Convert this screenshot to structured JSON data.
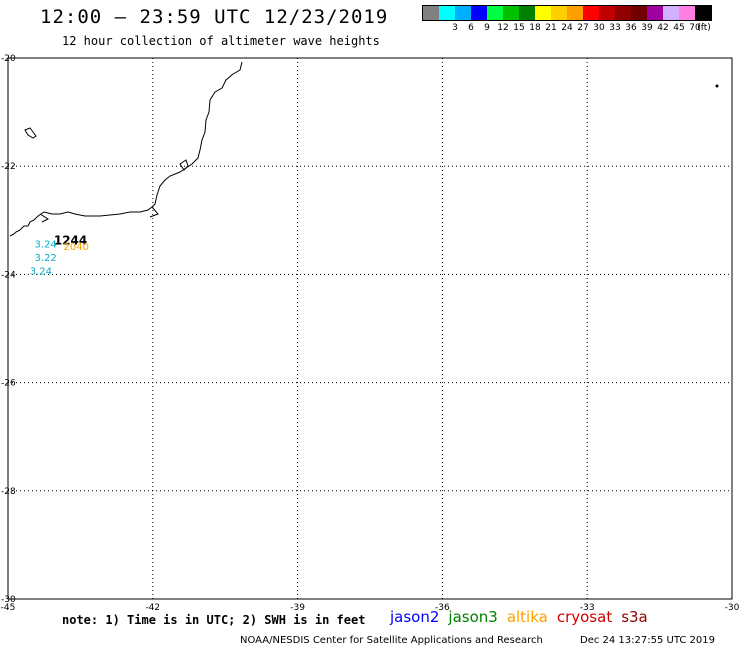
{
  "header": {
    "title": "12:00 – 23:59 UTC 12/23/2019",
    "subtitle": "12 hour collection of altimeter wave heights"
  },
  "legend": {
    "unit": "(ft)",
    "bins": [
      {
        "label": "",
        "color": "#808080"
      },
      {
        "label": "3",
        "color": "#00ffff"
      },
      {
        "label": "6",
        "color": "#00b0ff"
      },
      {
        "label": "9",
        "color": "#0000ff"
      },
      {
        "label": "12",
        "color": "#00ff40"
      },
      {
        "label": "15",
        "color": "#00c000"
      },
      {
        "label": "18",
        "color": "#008000"
      },
      {
        "label": "21",
        "color": "#ffff00"
      },
      {
        "label": "24",
        "color": "#ffd000"
      },
      {
        "label": "27",
        "color": "#ffa000"
      },
      {
        "label": "30",
        "color": "#ff0000"
      },
      {
        "label": "33",
        "color": "#c00000"
      },
      {
        "label": "36",
        "color": "#900000"
      },
      {
        "label": "39",
        "color": "#700000"
      },
      {
        "label": "42",
        "color": "#a000a0"
      },
      {
        "label": "45",
        "color": "#d0b0ff"
      },
      {
        "label": "70",
        "color": "#ff80e0"
      },
      {
        "label": "",
        "color": "#000000"
      }
    ]
  },
  "map": {
    "lon_range": [
      -45,
      -30
    ],
    "lat_range": [
      -30,
      -20
    ],
    "lon_ticks": [
      "-45",
      "-42",
      "-39",
      "-36",
      "-33",
      "-30"
    ],
    "lat_ticks": [
      "-20",
      "-22",
      "-24",
      "-26",
      "-28",
      "-30"
    ],
    "grid": true,
    "annotations": [
      {
        "text": "1244",
        "lon": -44.05,
        "lat": -23.45,
        "color": "#000000",
        "bold": true
      },
      {
        "text": "2040",
        "lon": -43.85,
        "lat": -23.55,
        "color": "#ffa000",
        "bold": false
      },
      {
        "text": "3.24",
        "lon": -44.45,
        "lat": -23.5,
        "color": "#00b0d0",
        "bold": false
      },
      {
        "text": "3.22",
        "lon": -44.45,
        "lat": -23.75,
        "color": "#00b0d0",
        "bold": false
      },
      {
        "text": "3.24",
        "lon": -44.55,
        "lat": -24.0,
        "color": "#00b0d0",
        "bold": false
      }
    ]
  },
  "footer": {
    "note": "note: 1) Time is in UTC; 2) SWH is in feet",
    "missions": [
      {
        "name": "jason2",
        "color": "#0000ff"
      },
      {
        "name": "jason3",
        "color": "#008000"
      },
      {
        "name": "altika",
        "color": "#ffa000"
      },
      {
        "name": "cryosat",
        "color": "#d00000"
      },
      {
        "name": "s3a",
        "color": "#900000"
      }
    ],
    "credit": "NOAA/NESDIS Center for Satellite Applications and Research",
    "timestamp": "Dec 24 13:27:55 UTC 2019"
  }
}
